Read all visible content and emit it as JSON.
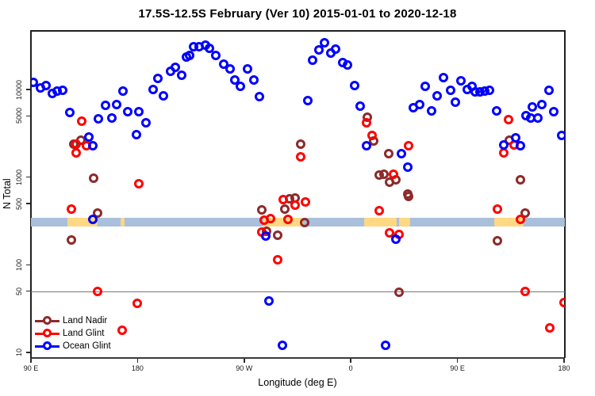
{
  "chart_data": {
    "type": "scatter",
    "title": "17.5S-12.5S February (Ver 10)   2015-01-01 to 2020-12-18",
    "xlabel": "Longitude (deg E)",
    "ylabel": "N Total",
    "x_axis": {
      "description": "Longitude unwrapped eastward starting at 90E (axis spans 450 degrees, 90E..180..90W..0..90E..180)",
      "domain_deg": [
        90,
        540
      ],
      "ticks": [
        {
          "deg": 90,
          "label": "90 E"
        },
        {
          "deg": 180,
          "label": "180"
        },
        {
          "deg": 270,
          "label": "90 W"
        },
        {
          "deg": 360,
          "label": "0"
        },
        {
          "deg": 450,
          "label": "90 E"
        },
        {
          "deg": 540,
          "label": "180"
        }
      ]
    },
    "y_axis": {
      "scale": "log10",
      "domain": [
        10,
        47600
      ],
      "ticks": [
        {
          "n": 10,
          "label": "10"
        },
        {
          "n": 50,
          "label": "50"
        },
        {
          "n": 100,
          "label": "100"
        },
        {
          "n": 500,
          "label": "500"
        },
        {
          "n": 1000,
          "label": "1000"
        },
        {
          "n": 5000,
          "label": "5000"
        },
        {
          "n": 10000,
          "label": "10000"
        }
      ]
    },
    "reference_line": {
      "n": 50,
      "color": "#787878"
    },
    "map_strip": {
      "description": "latitude-band land/ocean strip across plot",
      "n_center": 400,
      "ocean_color": "#a9bfdc",
      "land_color": "#ffd883",
      "land_patches_deg": [
        [
          121,
          146
        ],
        [
          166,
          169
        ],
        [
          286,
          320
        ],
        [
          371,
          399
        ],
        [
          401,
          410
        ],
        [
          481,
          506
        ]
      ]
    },
    "legend": {
      "position": "bottom-left",
      "entries": [
        {
          "label": "Land Nadir",
          "color": "#8d2a2a"
        },
        {
          "label": "Land Glint",
          "color": "#ff0000"
        },
        {
          "label": "Ocean Glint",
          "color": "#0000ff"
        }
      ]
    },
    "series": [
      {
        "name": "Land Nadir",
        "color": "#8d2a2a",
        "points": [
          [
            126,
            2390
          ],
          [
            132,
            2630
          ],
          [
            143,
            975
          ],
          [
            374,
            4800
          ],
          [
            379,
            2590
          ],
          [
            384,
            1050
          ],
          [
            388,
            1090
          ],
          [
            318,
            2380
          ],
          [
            392,
            1860
          ],
          [
            494,
            2630
          ],
          [
            503,
            940
          ],
          [
            398,
            940
          ],
          [
            393,
            875
          ],
          [
            408,
            635
          ],
          [
            146,
            387
          ],
          [
            124,
            191
          ],
          [
            308,
            570
          ],
          [
            313,
            580
          ],
          [
            304,
            435
          ],
          [
            285,
            420
          ],
          [
            321,
            302
          ],
          [
            289,
            242
          ],
          [
            298,
            219
          ],
          [
            409,
            599
          ],
          [
            507,
            387
          ],
          [
            484,
            188
          ],
          [
            401,
            49
          ]
        ]
      },
      {
        "name": "Land Glint",
        "color": "#ff0000",
        "points": [
          [
            133,
            4350
          ],
          [
            128,
            2390
          ],
          [
            137,
            2290
          ],
          [
            128,
            1900
          ],
          [
            181,
            843
          ],
          [
            373,
            4200
          ],
          [
            378,
            2970
          ],
          [
            318,
            1690
          ],
          [
            493,
            4500
          ],
          [
            409,
            2260
          ],
          [
            498,
            2320
          ],
          [
            489,
            1885
          ],
          [
            396,
            1090
          ],
          [
            124,
            432
          ],
          [
            146,
            50
          ],
          [
            180,
            36
          ],
          [
            167,
            18
          ],
          [
            303,
            558
          ],
          [
            322,
            525
          ],
          [
            313,
            480
          ],
          [
            287,
            324
          ],
          [
            292,
            336
          ],
          [
            307,
            327
          ],
          [
            285,
            237
          ],
          [
            298,
            114
          ],
          [
            384,
            415
          ],
          [
            484,
            432
          ],
          [
            503,
            327
          ],
          [
            401,
            222
          ],
          [
            393,
            232
          ],
          [
            507,
            50
          ],
          [
            540,
            37
          ],
          [
            528,
            19
          ]
        ]
      },
      {
        "name": "Ocean Glint",
        "color": "#0000ff",
        "points": [
          [
            92,
            12000
          ],
          [
            98,
            10500
          ],
          [
            103,
            11000
          ],
          [
            108,
            9000
          ],
          [
            112,
            9550
          ],
          [
            117,
            9800
          ],
          [
            123,
            5430
          ],
          [
            139,
            2890
          ],
          [
            142,
            2300
          ],
          [
            147,
            4600
          ],
          [
            153,
            6550
          ],
          [
            158,
            4730
          ],
          [
            162,
            6700
          ],
          [
            168,
            9600
          ],
          [
            172,
            5550
          ],
          [
            179,
            3060
          ],
          [
            181,
            5550
          ],
          [
            187,
            4200
          ],
          [
            193,
            9900
          ],
          [
            197,
            13300
          ],
          [
            202,
            8400
          ],
          [
            208,
            16300
          ],
          [
            212,
            17800
          ],
          [
            217,
            14600
          ],
          [
            221,
            23500
          ],
          [
            224,
            24300
          ],
          [
            227,
            30600
          ],
          [
            232,
            30800
          ],
          [
            237,
            31900
          ],
          [
            241,
            29300
          ],
          [
            246,
            24600
          ],
          [
            253,
            19600
          ],
          [
            258,
            17100
          ],
          [
            262,
            12800
          ],
          [
            267,
            10900
          ],
          [
            273,
            17100
          ],
          [
            278,
            12800
          ],
          [
            283,
            8300
          ],
          [
            324,
            7400
          ],
          [
            328,
            21500
          ],
          [
            333,
            28300
          ],
          [
            338,
            34400
          ],
          [
            343,
            25900
          ],
          [
            347,
            28900
          ],
          [
            353,
            20400
          ],
          [
            357,
            19100
          ],
          [
            363,
            11100
          ],
          [
            368,
            6470
          ],
          [
            373,
            2260
          ],
          [
            413,
            6160
          ],
          [
            418,
            6700
          ],
          [
            423,
            10900
          ],
          [
            428,
            5750
          ],
          [
            433,
            8500
          ],
          [
            438,
            13700
          ],
          [
            444,
            9800
          ],
          [
            448,
            7200
          ],
          [
            453,
            12600
          ],
          [
            458,
            10000
          ],
          [
            462,
            10900
          ],
          [
            465,
            9400
          ],
          [
            469,
            9300
          ],
          [
            473,
            9600
          ],
          [
            477,
            9800
          ],
          [
            483,
            5650
          ],
          [
            508,
            5000
          ],
          [
            512,
            4730
          ],
          [
            518,
            4730
          ],
          [
            513,
            6350
          ],
          [
            521,
            6700
          ],
          [
            527,
            9800
          ],
          [
            531,
            5600
          ],
          [
            538,
            3000
          ],
          [
            403,
            1860
          ],
          [
            408,
            1310
          ],
          [
            499,
            2810
          ],
          [
            489,
            2345
          ],
          [
            503,
            2290
          ],
          [
            142,
            327
          ],
          [
            288,
            212
          ],
          [
            291,
            39
          ],
          [
            302,
            12
          ],
          [
            389,
            12
          ],
          [
            398,
            197
          ]
        ]
      }
    ]
  }
}
